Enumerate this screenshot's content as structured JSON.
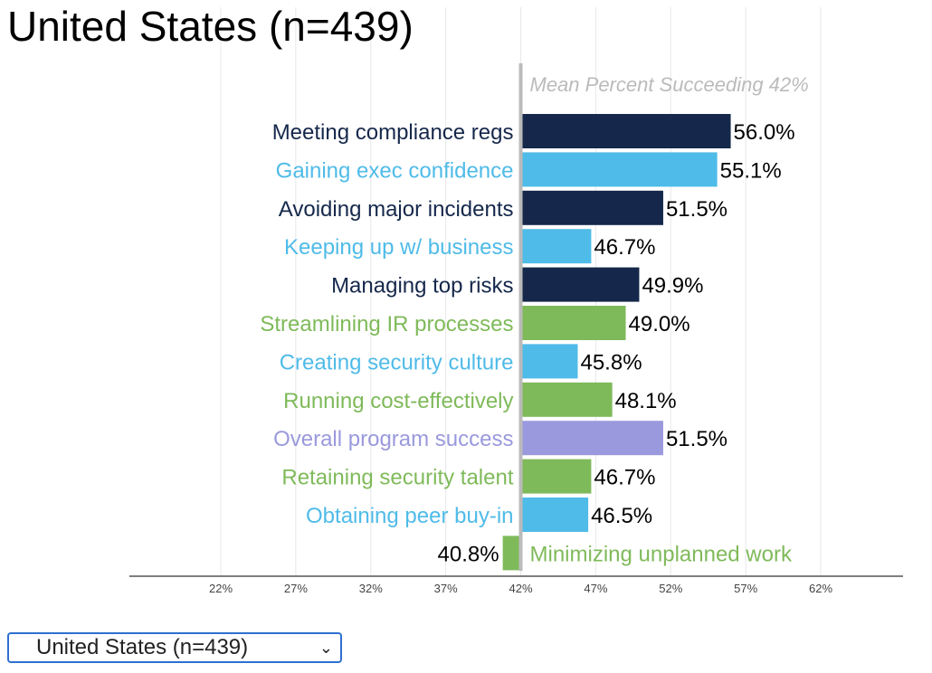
{
  "title": "United States (n=439)",
  "selector": {
    "selected": "United States (n=439)"
  },
  "colors": {
    "navy": "#15284b",
    "blue": "#4fbbe8",
    "green": "#7fba5a",
    "purple": "#9a99dd",
    "mean": "#bbbbbb"
  },
  "chart_data": {
    "type": "bar",
    "orientation": "horizontal",
    "baseline": 42,
    "xlim": [
      17,
      67
    ],
    "ticks": [
      "22%",
      "27%",
      "32%",
      "37%",
      "42%",
      "47%",
      "52%",
      "57%",
      "62%"
    ],
    "tick_values": [
      22,
      27,
      32,
      37,
      42,
      47,
      52,
      57,
      62
    ],
    "grid": true,
    "mean_label": "Mean Percent Succeeding 42%",
    "categories": [
      "Meeting compliance regs",
      "Gaining exec confidence",
      "Avoiding major incidents",
      "Keeping up w/ business",
      "Managing top risks",
      "Streamlining IR processes",
      "Creating security culture",
      "Running cost-effectively",
      "Overall program success",
      "Retaining security talent",
      "Obtaining peer buy-in",
      "Minimizing unplanned work"
    ],
    "values": [
      56.0,
      55.1,
      51.5,
      46.7,
      49.9,
      49.0,
      45.8,
      48.1,
      51.5,
      46.7,
      46.5,
      40.8
    ],
    "labels": [
      "56.0%",
      "55.1%",
      "51.5%",
      "46.7%",
      "49.9%",
      "49.0%",
      "45.8%",
      "48.1%",
      "51.5%",
      "46.7%",
      "46.5%",
      "40.8%"
    ],
    "bar_colors": [
      "navy",
      "blue",
      "navy",
      "blue",
      "navy",
      "green",
      "blue",
      "green",
      "purple",
      "green",
      "blue",
      "green"
    ]
  }
}
